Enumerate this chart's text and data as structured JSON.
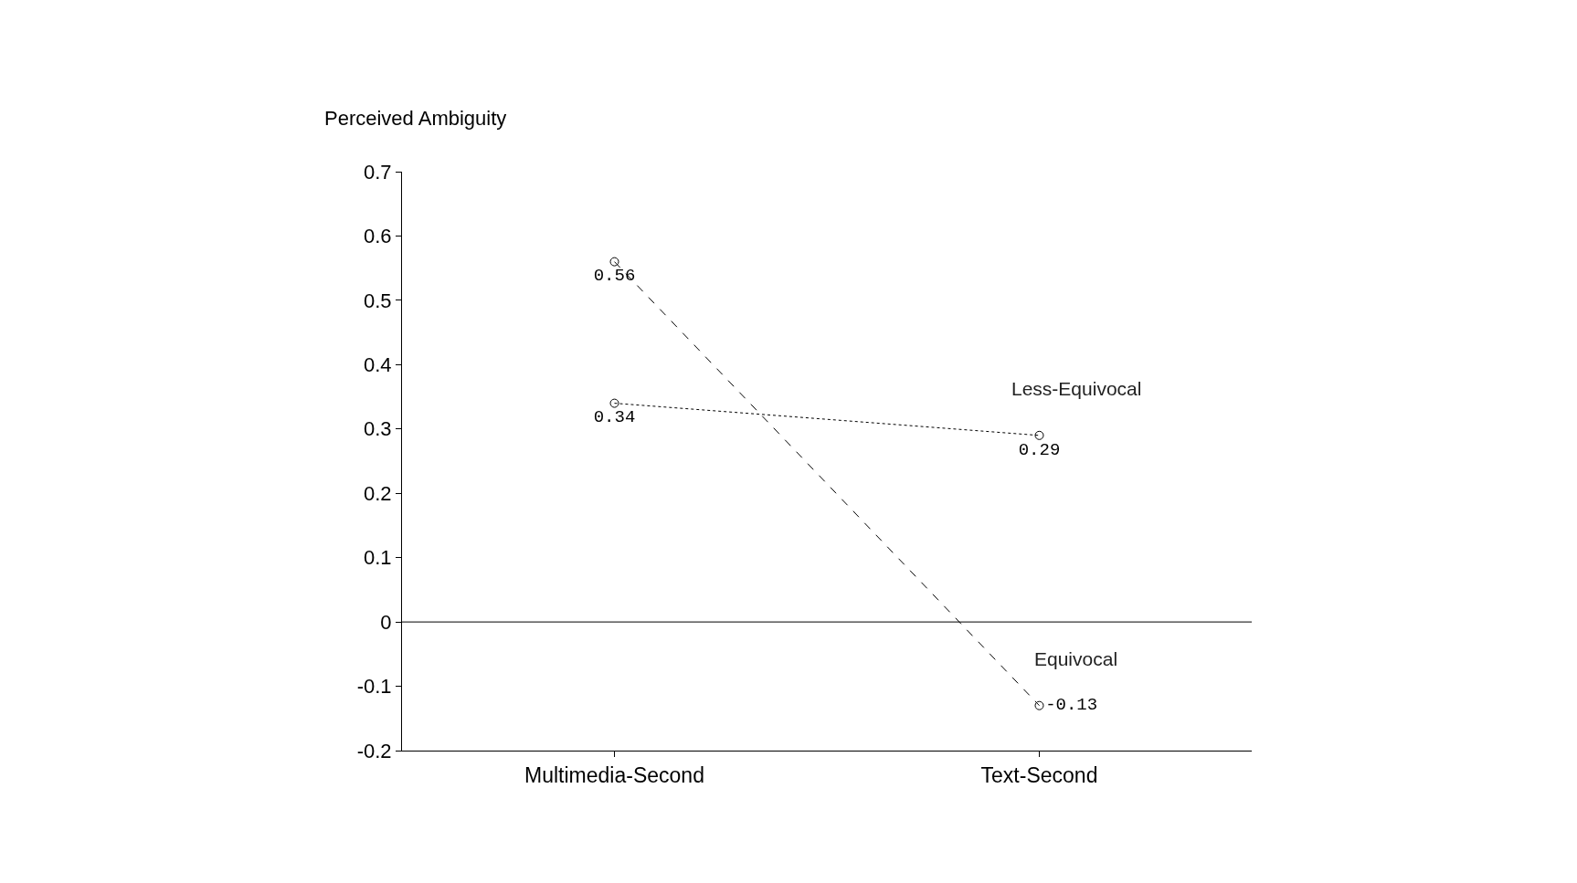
{
  "chart_data": {
    "type": "line",
    "ylabel": "Perceived Ambiguity",
    "categories": [
      "Multimedia-Second",
      "Text-Second"
    ],
    "series": [
      {
        "name": "Less-Equivocal",
        "color": "#000000",
        "line_style": "dotted",
        "values": [
          0.34,
          0.29
        ]
      },
      {
        "name": "Equivocal",
        "color": "#000000",
        "line_style": "dashed",
        "values": [
          0.56,
          -0.13
        ]
      }
    ],
    "ylim": [
      -0.2,
      0.7
    ],
    "yticks": [
      {
        "value": -0.2,
        "label": "-0.2"
      },
      {
        "value": -0.1,
        "label": "-0.1"
      },
      0,
      0.1,
      0.2,
      0.3,
      0.4,
      0.5,
      0.6,
      0.7
    ],
    "ref_lines": [
      {
        "axis": "y",
        "value": 0,
        "color": "#000000",
        "line_style": "solid"
      }
    ],
    "data_labels": true,
    "marker": "circle",
    "legend": false
  }
}
